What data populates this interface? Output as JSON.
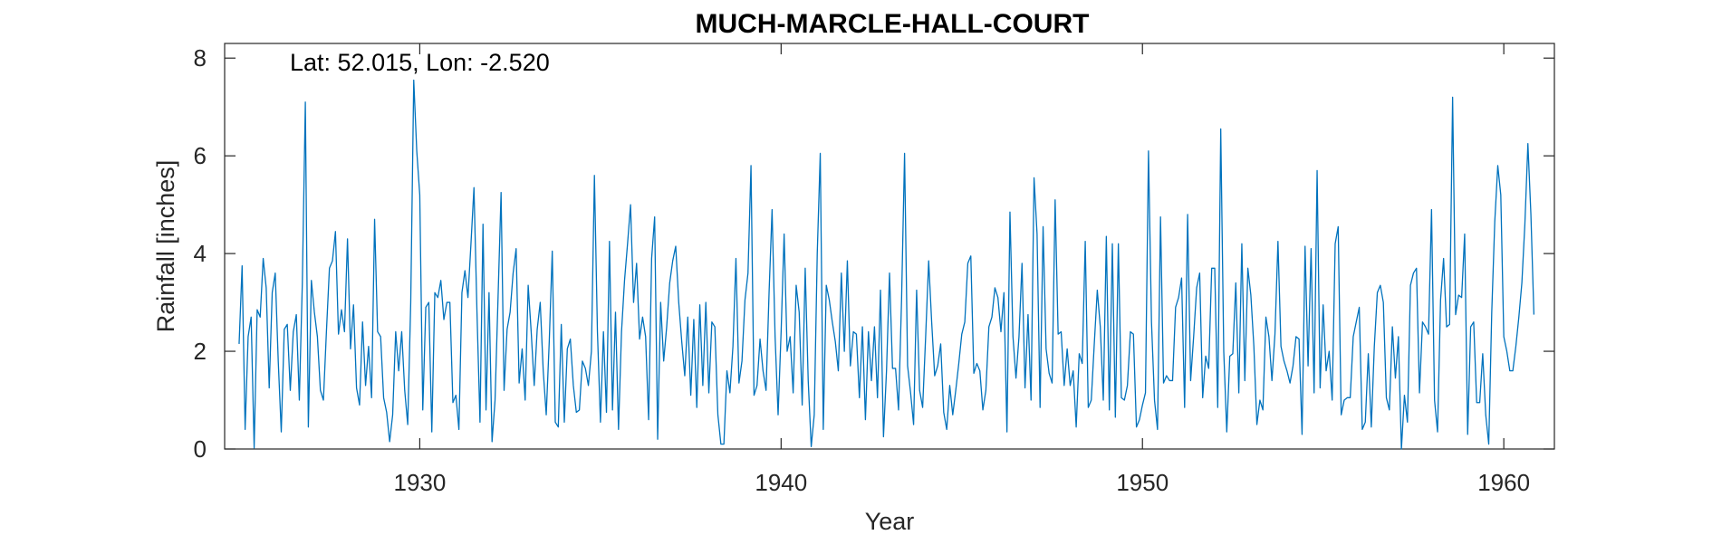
{
  "chart_data": {
    "type": "line",
    "title": "MUCH-MARCLE-HALL-COURT",
    "annotation": "Lat: 52.015, Lon: -2.520",
    "xlabel": "Year",
    "ylabel": "Rainfall [inches]",
    "xlim": [
      1924.6,
      1961.4
    ],
    "ylim": [
      0,
      8.3
    ],
    "xticks": [
      1930,
      1940,
      1950,
      1960
    ],
    "yticks": [
      0,
      2,
      4,
      6,
      8
    ],
    "grid": false,
    "line_color": "#0072BD",
    "series": [
      {
        "x_start": 1925.0,
        "x_step": 0.0833333,
        "values": [
          2.15,
          3.75,
          0.4,
          2.3,
          2.7,
          0.02,
          2.85,
          2.7,
          3.9,
          3.3,
          1.25,
          3.2,
          3.6,
          1.8,
          0.35,
          2.45,
          2.55,
          1.2,
          2.4,
          2.75,
          1.0,
          3.4,
          7.1,
          0.45,
          3.45,
          2.8,
          2.3,
          1.2,
          1.0,
          2.4,
          3.7,
          3.85,
          4.45,
          2.35,
          2.85,
          2.4,
          4.3,
          2.05,
          2.95,
          1.25,
          0.9,
          2.6,
          1.3,
          2.1,
          1.05,
          4.7,
          2.4,
          2.3,
          1.05,
          0.75,
          0.15,
          0.7,
          2.4,
          1.6,
          2.4,
          1.2,
          0.5,
          3.0,
          7.55,
          6.1,
          5.2,
          0.8,
          2.9,
          3.0,
          0.35,
          3.2,
          3.1,
          3.45,
          2.65,
          3.0,
          3.0,
          0.95,
          1.1,
          0.4,
          3.2,
          3.65,
          3.1,
          4.2,
          5.35,
          2.8,
          0.55,
          4.6,
          0.8,
          3.2,
          0.15,
          1.0,
          3.1,
          5.25,
          1.2,
          2.45,
          2.8,
          3.6,
          4.1,
          1.35,
          2.05,
          1.0,
          3.35,
          2.4,
          1.3,
          2.45,
          3.0,
          1.6,
          0.7,
          2.2,
          4.05,
          0.55,
          0.45,
          2.55,
          0.55,
          2.05,
          2.25,
          1.3,
          0.75,
          0.8,
          1.8,
          1.65,
          1.3,
          2.0,
          5.6,
          2.4,
          0.55,
          2.4,
          0.75,
          4.25,
          0.8,
          2.8,
          0.4,
          2.4,
          3.45,
          4.2,
          5.0,
          3.0,
          3.8,
          2.25,
          2.7,
          2.3,
          0.6,
          3.9,
          4.75,
          0.2,
          3.0,
          1.8,
          2.5,
          3.4,
          3.85,
          4.15,
          3.0,
          2.2,
          1.5,
          2.7,
          1.1,
          2.65,
          0.85,
          2.95,
          1.3,
          3.0,
          1.15,
          2.6,
          2.5,
          0.7,
          0.1,
          0.1,
          1.6,
          1.15,
          2.1,
          3.9,
          1.35,
          1.8,
          3.05,
          3.6,
          5.8,
          1.1,
          1.3,
          2.25,
          1.6,
          1.2,
          3.2,
          4.9,
          2.3,
          0.7,
          2.4,
          4.4,
          2.0,
          2.3,
          1.15,
          3.35,
          2.8,
          0.9,
          3.7,
          1.4,
          0.05,
          0.7,
          4.0,
          6.05,
          0.4,
          3.35,
          3.05,
          2.6,
          2.2,
          1.6,
          3.6,
          2.0,
          3.85,
          1.7,
          2.4,
          2.35,
          1.05,
          2.5,
          0.6,
          2.4,
          1.4,
          2.5,
          1.05,
          3.25,
          0.25,
          1.6,
          3.6,
          1.65,
          1.65,
          0.8,
          3.05,
          6.05,
          1.7,
          1.15,
          0.5,
          3.25,
          1.2,
          0.85,
          2.3,
          3.85,
          2.6,
          1.5,
          1.7,
          2.15,
          0.75,
          0.4,
          1.3,
          0.7,
          1.2,
          1.75,
          2.35,
          2.6,
          3.8,
          3.95,
          1.55,
          1.75,
          1.6,
          0.8,
          1.2,
          2.5,
          2.7,
          3.3,
          3.1,
          2.4,
          3.2,
          0.35,
          4.85,
          2.3,
          1.45,
          2.3,
          3.8,
          1.25,
          2.75,
          1.0,
          5.55,
          4.4,
          0.85,
          4.55,
          2.05,
          1.55,
          1.35,
          5.1,
          2.35,
          2.4,
          1.3,
          2.05,
          1.3,
          1.6,
          0.45,
          1.95,
          1.75,
          4.25,
          0.85,
          1.0,
          2.15,
          3.25,
          2.5,
          1.0,
          4.35,
          0.8,
          4.2,
          0.65,
          4.2,
          1.05,
          1.0,
          1.3,
          2.4,
          2.35,
          0.45,
          0.6,
          0.9,
          1.15,
          6.1,
          2.6,
          1.0,
          0.4,
          4.75,
          1.35,
          1.5,
          1.4,
          1.4,
          2.9,
          3.1,
          3.5,
          0.85,
          4.8,
          1.4,
          2.3,
          3.3,
          3.6,
          1.05,
          1.9,
          1.65,
          3.7,
          3.7,
          0.85,
          6.55,
          2.0,
          0.35,
          1.9,
          1.95,
          3.4,
          1.15,
          4.2,
          1.4,
          3.7,
          3.15,
          2.1,
          0.5,
          1.0,
          0.8,
          2.7,
          2.3,
          1.4,
          2.35,
          4.25,
          2.1,
          1.8,
          1.6,
          1.35,
          1.7,
          2.3,
          2.25,
          0.3,
          4.15,
          1.7,
          4.1,
          1.15,
          5.7,
          1.25,
          2.95,
          1.6,
          2.0,
          1.0,
          4.2,
          4.55,
          0.7,
          1.0,
          1.05,
          1.05,
          2.3,
          2.6,
          2.9,
          0.4,
          0.55,
          1.95,
          0.45,
          2.1,
          3.2,
          3.35,
          3.0,
          1.05,
          0.8,
          2.5,
          1.45,
          2.3,
          0.0,
          1.1,
          0.55,
          3.35,
          3.6,
          3.7,
          1.15,
          2.6,
          2.5,
          2.35,
          4.9,
          1.0,
          0.35,
          3.05,
          3.9,
          2.5,
          2.55,
          7.2,
          2.75,
          3.15,
          3.1,
          4.4,
          0.3,
          2.5,
          2.6,
          0.95,
          0.95,
          1.95,
          0.7,
          0.1,
          2.8,
          4.65,
          5.8,
          5.2,
          2.3,
          2.0,
          1.6,
          1.6,
          2.1,
          2.7,
          3.4,
          4.6,
          6.25,
          4.8,
          2.75
        ]
      }
    ]
  }
}
